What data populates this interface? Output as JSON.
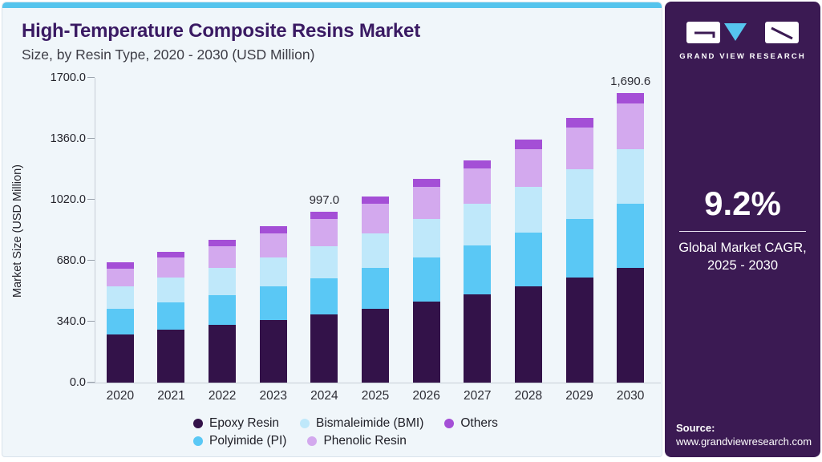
{
  "header": {
    "title": "High-Temperature Composite Resins Market",
    "subtitle": "Size, by Resin Type, 2020 - 2030 (USD Million)"
  },
  "colors": {
    "accent_strip": "#55c4ed",
    "title_text": "#3a1a63",
    "sidebar_panel": "#3b1a53",
    "sidebar_triangle": "#56c5ee"
  },
  "sidebar": {
    "brand": "GRAND VIEW RESEARCH",
    "cagr_value": "9.2%",
    "cagr_line1": "Global Market CAGR,",
    "cagr_line2": "2025 - 2030",
    "source_label": "Source:",
    "source_url": "www.grandviewresearch.com"
  },
  "chart_data": {
    "type": "bar",
    "stacked": true,
    "title": "High-Temperature Composite Resins Market Size, by Resin Type, 2020 - 2030 (USD Million)",
    "xlabel": "",
    "ylabel": "Market Size (USD Million)",
    "ylim": [
      0,
      1700
    ],
    "yticks": [
      0,
      340,
      680,
      1020,
      1360,
      1700
    ],
    "ytick_labels": [
      "0.0",
      "340.0",
      "680.0",
      "1020.0",
      "1360.0",
      "1700.0"
    ],
    "grid": false,
    "legend_position": "bottom",
    "categories": [
      "2020",
      "2021",
      "2022",
      "2023",
      "2024",
      "2025",
      "2026",
      "2027",
      "2028",
      "2029",
      "2030"
    ],
    "series": [
      {
        "name": "Epoxy Resin",
        "color": "#331249",
        "values": [
          283,
          309,
          336,
          366,
          396,
          433,
          473,
          516,
          563,
          613,
          669
        ]
      },
      {
        "name": "Polyimide (PI)",
        "color": "#5ac8f5",
        "values": [
          146,
          161,
          177,
          194,
          212,
          235,
          259,
          286,
          313,
          344,
          377
        ]
      },
      {
        "name": "Bismaleimide (BMI)",
        "color": "#bfe8fa",
        "values": [
          132,
          144,
          157,
          172,
          188,
          205,
          222,
          243,
          265,
          289,
          316
        ]
      },
      {
        "name": "Phenolic Resin",
        "color": "#d3a9ee",
        "values": [
          104,
          115,
          127,
          140,
          160,
          172,
          187,
          204,
          223,
          245,
          268.6
        ]
      },
      {
        "name": "Others",
        "color": "#a44fd6",
        "values": [
          36,
          37,
          39,
          41,
          41,
          44,
          48,
          50,
          54,
          57,
          60
        ]
      }
    ],
    "totals": [
      701,
      766,
      836,
      913,
      997.0,
      1089,
      1189,
      1299,
      1418,
      1548,
      1690.6
    ],
    "value_labels": {
      "2024": "997.0",
      "2030": "1,690.6"
    },
    "legend_rows": [
      [
        "Epoxy Resin",
        "Bismaleimide (BMI)",
        "Others"
      ],
      [
        "Polyimide (PI)",
        "Phenolic Resin"
      ]
    ]
  }
}
